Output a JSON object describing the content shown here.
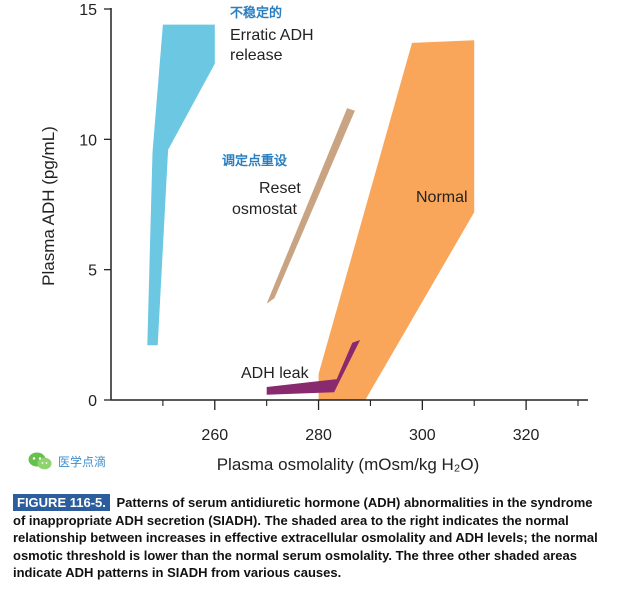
{
  "chart_data": {
    "type": "area",
    "xlabel": "Plasma osmolality (mOsm/kg H₂O)",
    "ylabel": "Plasma ADH (pg/mL)",
    "xlim": [
      240,
      330
    ],
    "ylim": [
      0,
      15
    ],
    "x_ticks": [
      "260",
      "280",
      "300",
      "320"
    ],
    "y_ticks": [
      "0",
      "5",
      "10",
      "15"
    ],
    "series": [
      {
        "name": "Erratic ADH release",
        "color": "#6cc7e3",
        "points": [
          [
            247,
            2.1
          ],
          [
            248,
            9.5
          ],
          [
            250,
            14.4
          ],
          [
            260,
            14.4
          ],
          [
            260,
            12.9
          ],
          [
            251,
            9.6
          ],
          [
            249,
            2.1
          ]
        ]
      },
      {
        "name": "Reset osmostat",
        "color": "#c9a483",
        "points": [
          [
            270,
            3.7
          ],
          [
            271.5,
            3.9
          ],
          [
            287,
            11.1
          ],
          [
            285.5,
            11.2
          ]
        ]
      },
      {
        "name": "Normal",
        "color": "#f9a65a",
        "points": [
          [
            280,
            0
          ],
          [
            289,
            0
          ],
          [
            310,
            7.2
          ],
          [
            310,
            13.8
          ],
          [
            298,
            13.7
          ],
          [
            280,
            1.0
          ]
        ]
      },
      {
        "name": "ADH leak",
        "color": "#8a2a6e",
        "points": [
          [
            270,
            0.2
          ],
          [
            283,
            0.3
          ],
          [
            288,
            2.3
          ],
          [
            286.5,
            2.2
          ],
          [
            283.5,
            0.8
          ],
          [
            270,
            0.5
          ]
        ]
      }
    ],
    "annotations": [
      {
        "text": "不稳定的",
        "lang": "zh"
      },
      {
        "text": "Erratic ADH",
        "lang": "en"
      },
      {
        "text": "release",
        "lang": "en"
      },
      {
        "text": "调定点重设",
        "lang": "zh"
      },
      {
        "text": "Reset",
        "lang": "en"
      },
      {
        "text": "osmostat",
        "lang": "en"
      },
      {
        "text": "Normal",
        "lang": "en"
      },
      {
        "text": "ADH leak",
        "lang": "en"
      }
    ]
  },
  "watermark": {
    "icon": "wechat-icon",
    "text": "医学点滴"
  },
  "caption": {
    "label": "FIGURE 116-5.",
    "title": "Patterns of serum antidiuretic hormone (ADH) abnormalities in the syndrome of inappropriate ADH secretion (SIADH).",
    "body": "The shaded area to the right indicates the normal relationship between increases in effective extracellular osmolality and ADH levels; the normal osmotic threshold is lower than the normal serum osmolality. The three other shaded areas indicate ADH patterns in SIADH from various causes."
  }
}
